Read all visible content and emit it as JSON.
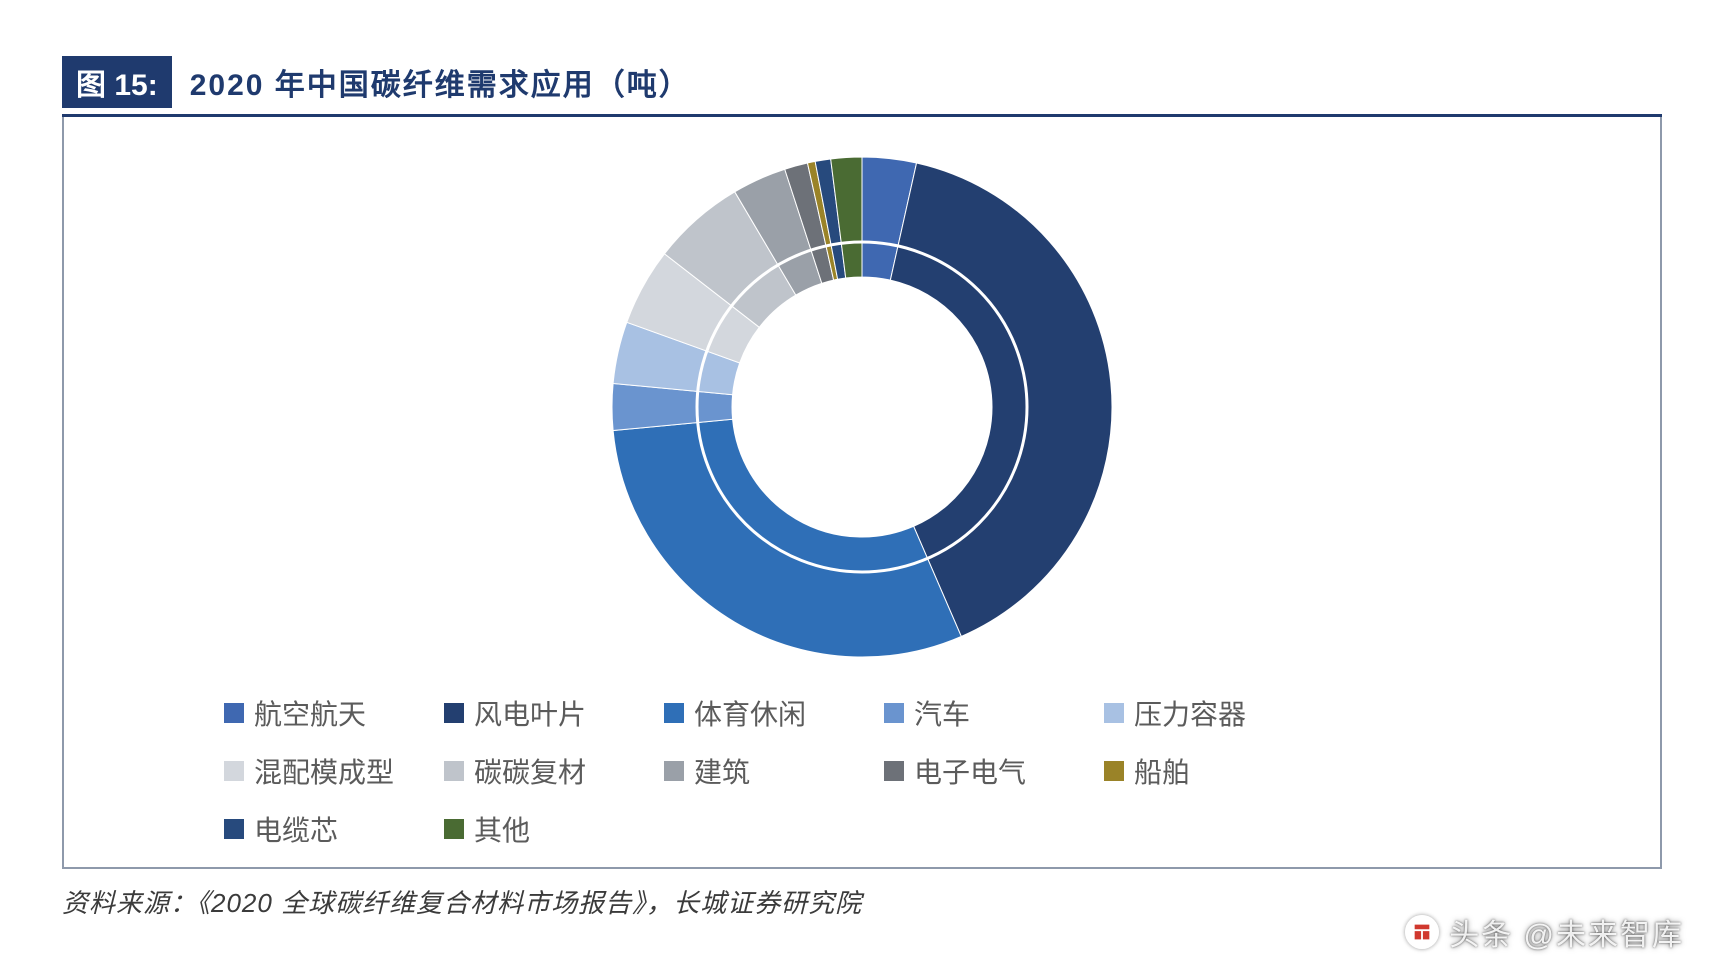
{
  "figure": {
    "badge": "图 15:",
    "title": "2020 年中国碳纤维需求应用（吨）",
    "source": "资料来源：《2020 全球碳纤维复合材料市场报告》，长城证券研究院",
    "watermark": "头条 @未来智库"
  },
  "chart": {
    "type": "donut",
    "start_angle_deg": 0,
    "direction": "clockwise",
    "outer_radius": 250,
    "inner_radius": 130,
    "inner_ring_radius": 165,
    "inner_ring_color": "#ffffff",
    "inner_ring_width": 3,
    "center_fill": "#ffffff",
    "background_color": "#ffffff",
    "border_color": "#8e99ab",
    "title_color": "#1f3a6e",
    "badge_bg": "#1f3a6e",
    "badge_fg": "#ffffff",
    "legend_font_size": 28,
    "legend_color": "#5b5b5b",
    "series": [
      {
        "label": "航空航天",
        "value": 3.5,
        "color": "#3f68b1"
      },
      {
        "label": "风电叶片",
        "value": 40.0,
        "color": "#233f70"
      },
      {
        "label": "体育休闲",
        "value": 30.0,
        "color": "#2f6fb7"
      },
      {
        "label": "汽车",
        "value": 3.0,
        "color": "#6a94cf"
      },
      {
        "label": "压力容器",
        "value": 4.0,
        "color": "#a8c1e3"
      },
      {
        "label": "混配模成型",
        "value": 5.0,
        "color": "#d3d7dd"
      },
      {
        "label": "碳碳复材",
        "value": 6.0,
        "color": "#bfc4cb"
      },
      {
        "label": "建筑",
        "value": 3.5,
        "color": "#9aa0a8"
      },
      {
        "label": "电子电气",
        "value": 1.5,
        "color": "#6d7178"
      },
      {
        "label": "船舶",
        "value": 0.5,
        "color": "#9a8328"
      },
      {
        "label": "电缆芯",
        "value": 1.0,
        "color": "#274a7d"
      },
      {
        "label": "其他",
        "value": 2.0,
        "color": "#4a6b33"
      }
    ]
  }
}
